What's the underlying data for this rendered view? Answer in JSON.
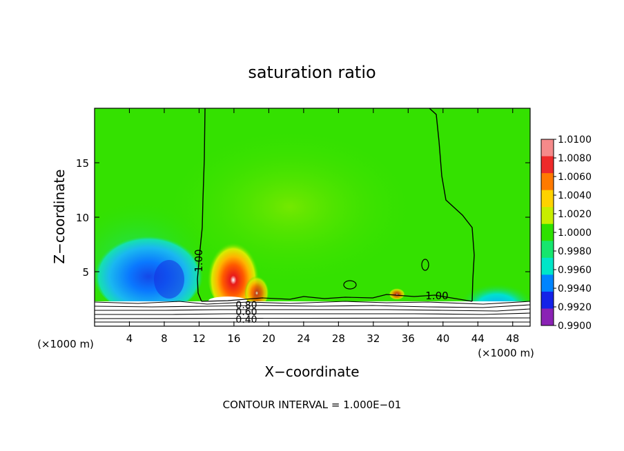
{
  "chart_data": {
    "type": "heatmap",
    "title": "saturation ratio",
    "xlabel": "X−coordinate",
    "ylabel": "Z−coordinate",
    "x_unit_left": "(×1000 m)",
    "x_unit_right": "(×1000 m)",
    "xlim": [
      0,
      50
    ],
    "ylim": [
      0,
      20
    ],
    "x_ticks": [
      4,
      8,
      12,
      16,
      20,
      24,
      28,
      32,
      36,
      40,
      44,
      48
    ],
    "y_ticks": [
      5,
      10,
      15
    ],
    "footer": "CONTOUR INTERVAL = 1.000E−01",
    "colorbar": {
      "labels": [
        "1.0100",
        "1.0080",
        "1.0060",
        "1.0040",
        "1.0020",
        "1.0000",
        "0.9980",
        "0.9960",
        "0.9940",
        "0.9920",
        "0.9900"
      ],
      "colors": [
        "#f58a8a",
        "#ee2a2a",
        "#ff7a00",
        "#ffd200",
        "#c8ee00",
        "#2ee100",
        "#16e66e",
        "#00e6c8",
        "#0084ff",
        "#1422e8",
        "#8a22b4"
      ]
    },
    "contour_labels": [
      "1.00",
      "1.00",
      "0.80",
      "0.60",
      "0.40"
    ],
    "background_color": "#34e100",
    "regions": [
      {
        "name": "left-surface-blue",
        "x": [
          2.5,
          10.5
        ],
        "z": [
          2.5,
          7.5
        ],
        "value": 0.9935
      },
      {
        "name": "plume-red",
        "x": [
          14.0,
          18.0
        ],
        "z": [
          2.5,
          8.0
        ],
        "value": 1.0065
      },
      {
        "name": "right-surface-cyan",
        "x": [
          42.0,
          48.0
        ],
        "z": [
          2.3,
          4.5
        ],
        "value": 0.9965
      }
    ]
  }
}
